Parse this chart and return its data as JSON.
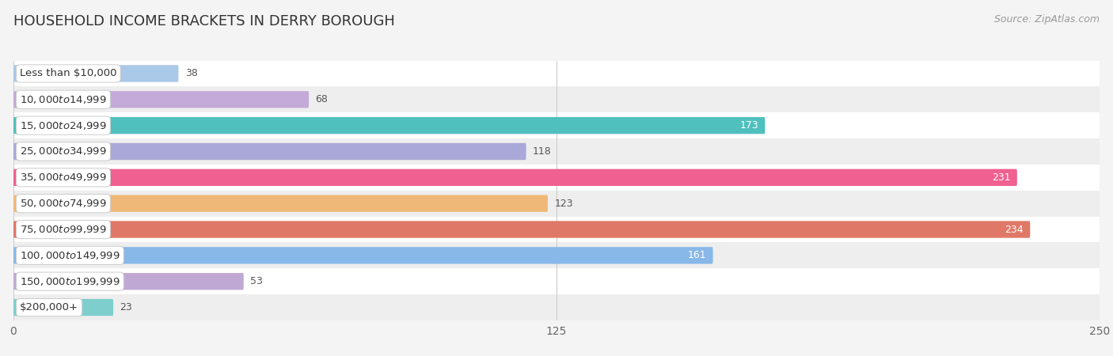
{
  "title": "HOUSEHOLD INCOME BRACKETS IN DERRY BOROUGH",
  "source": "Source: ZipAtlas.com",
  "categories": [
    "Less than $10,000",
    "$10,000 to $14,999",
    "$15,000 to $24,999",
    "$25,000 to $34,999",
    "$35,000 to $49,999",
    "$50,000 to $74,999",
    "$75,000 to $99,999",
    "$100,000 to $149,999",
    "$150,000 to $199,999",
    "$200,000+"
  ],
  "values": [
    38,
    68,
    173,
    118,
    231,
    123,
    234,
    161,
    53,
    23
  ],
  "bar_colors": [
    "#aac8e8",
    "#c4aad8",
    "#50c0be",
    "#aaa8d8",
    "#f06090",
    "#f0b878",
    "#e07868",
    "#88b8e8",
    "#c0a8d4",
    "#7ecece"
  ],
  "label_inside": [
    false,
    false,
    true,
    false,
    true,
    false,
    true,
    true,
    false,
    false
  ],
  "xlim": [
    0,
    250
  ],
  "xticks": [
    0,
    125,
    250
  ],
  "bg_color": "#f4f4f4",
  "row_colors": [
    "#ffffff",
    "#eeeeee"
  ],
  "title_fontsize": 13,
  "source_fontsize": 9,
  "label_fontsize": 9.5,
  "value_fontsize": 9,
  "bar_height": 0.65
}
